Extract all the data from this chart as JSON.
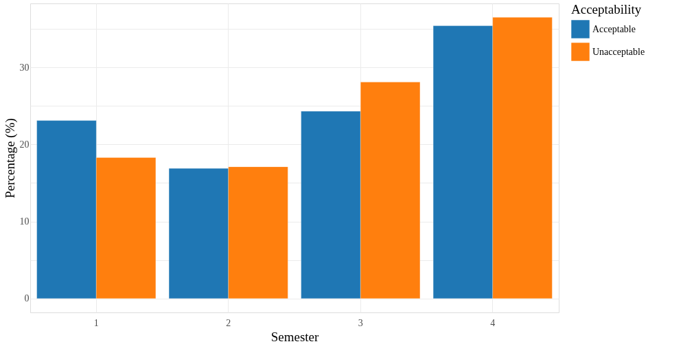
{
  "chart_data": {
    "type": "bar",
    "xlabel": "Semester",
    "ylabel": "Percentage (%)",
    "legend_title": "Acceptability",
    "categories": [
      "1",
      "2",
      "3",
      "4"
    ],
    "series": [
      {
        "name": "Acceptable",
        "color": "#1f77b4",
        "values": [
          23.1,
          16.9,
          24.3,
          35.4
        ]
      },
      {
        "name": "Unacceptable",
        "color": "#ff7f0e",
        "values": [
          18.3,
          17.1,
          28.1,
          36.5
        ]
      }
    ],
    "ylim": [
      -1.8,
      38.3
    ],
    "yticks": [
      0,
      {
        "value": 5,
        "label": null
      },
      10,
      {
        "value": 15,
        "label": null
      },
      20,
      {
        "value": 25,
        "label": null
      },
      30,
      {
        "value": 35,
        "label": null
      }
    ],
    "grid": true,
    "legend": "right"
  }
}
